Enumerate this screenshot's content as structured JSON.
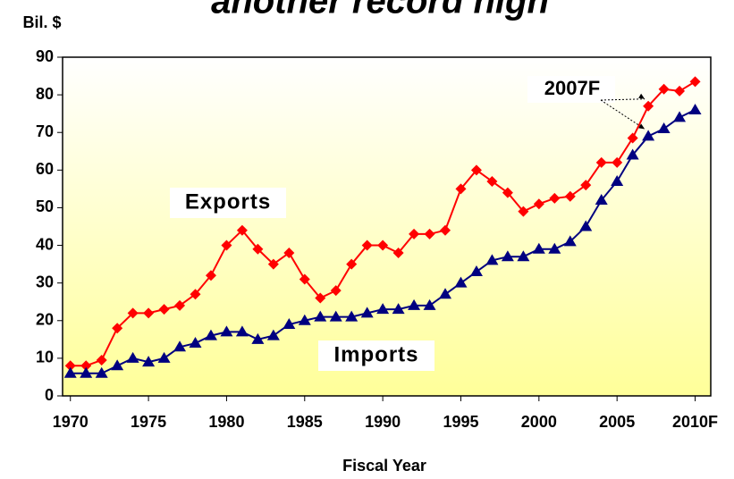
{
  "chart_data": {
    "type": "line",
    "title": "another record high",
    "y_label": "Bil. $",
    "x_label": "Fiscal Year",
    "x": [
      1970,
      1971,
      1972,
      1973,
      1974,
      1975,
      1976,
      1977,
      1978,
      1979,
      1980,
      1981,
      1982,
      1983,
      1984,
      1985,
      1986,
      1987,
      1988,
      1989,
      1990,
      1991,
      1992,
      1993,
      1994,
      1995,
      1996,
      1997,
      1998,
      1999,
      2000,
      2001,
      2002,
      2003,
      2004,
      2005,
      2006,
      2007,
      2008,
      2009,
      2010
    ],
    "series": [
      {
        "name": "Exports",
        "color": "#ff0000",
        "marker": "diamond",
        "values": [
          8,
          8,
          9.5,
          18,
          22,
          22,
          23,
          24,
          27,
          32,
          40,
          44,
          39,
          35,
          38,
          31,
          26,
          28,
          35,
          40,
          40,
          38,
          43,
          43,
          44,
          55,
          60,
          57,
          54,
          49,
          51,
          52.5,
          53,
          56,
          62,
          62,
          68.5,
          77,
          81.5,
          81,
          83.5
        ]
      },
      {
        "name": "Imports",
        "color": "#000080",
        "marker": "triangle",
        "values": [
          6,
          6,
          6,
          8,
          10,
          9,
          10,
          13,
          14,
          16,
          17,
          17,
          15,
          16,
          19,
          20,
          21,
          21,
          21,
          22,
          23,
          23,
          24,
          24,
          27,
          30,
          33,
          36,
          37,
          37,
          39,
          39,
          41,
          45,
          52,
          57,
          64,
          69,
          71,
          74,
          76
        ]
      }
    ],
    "xlim": [
      1969.5,
      2011
    ],
    "xticks": [
      1970,
      1975,
      1980,
      1985,
      1990,
      1995,
      2000,
      2005,
      {
        "value": 2010,
        "label": "2010F"
      }
    ],
    "ylim": [
      0,
      90
    ],
    "yticks": [
      0,
      10,
      20,
      30,
      40,
      50,
      60,
      70,
      80,
      90
    ],
    "annotations": [
      {
        "text": "2007F",
        "x": 2007
      }
    ]
  }
}
